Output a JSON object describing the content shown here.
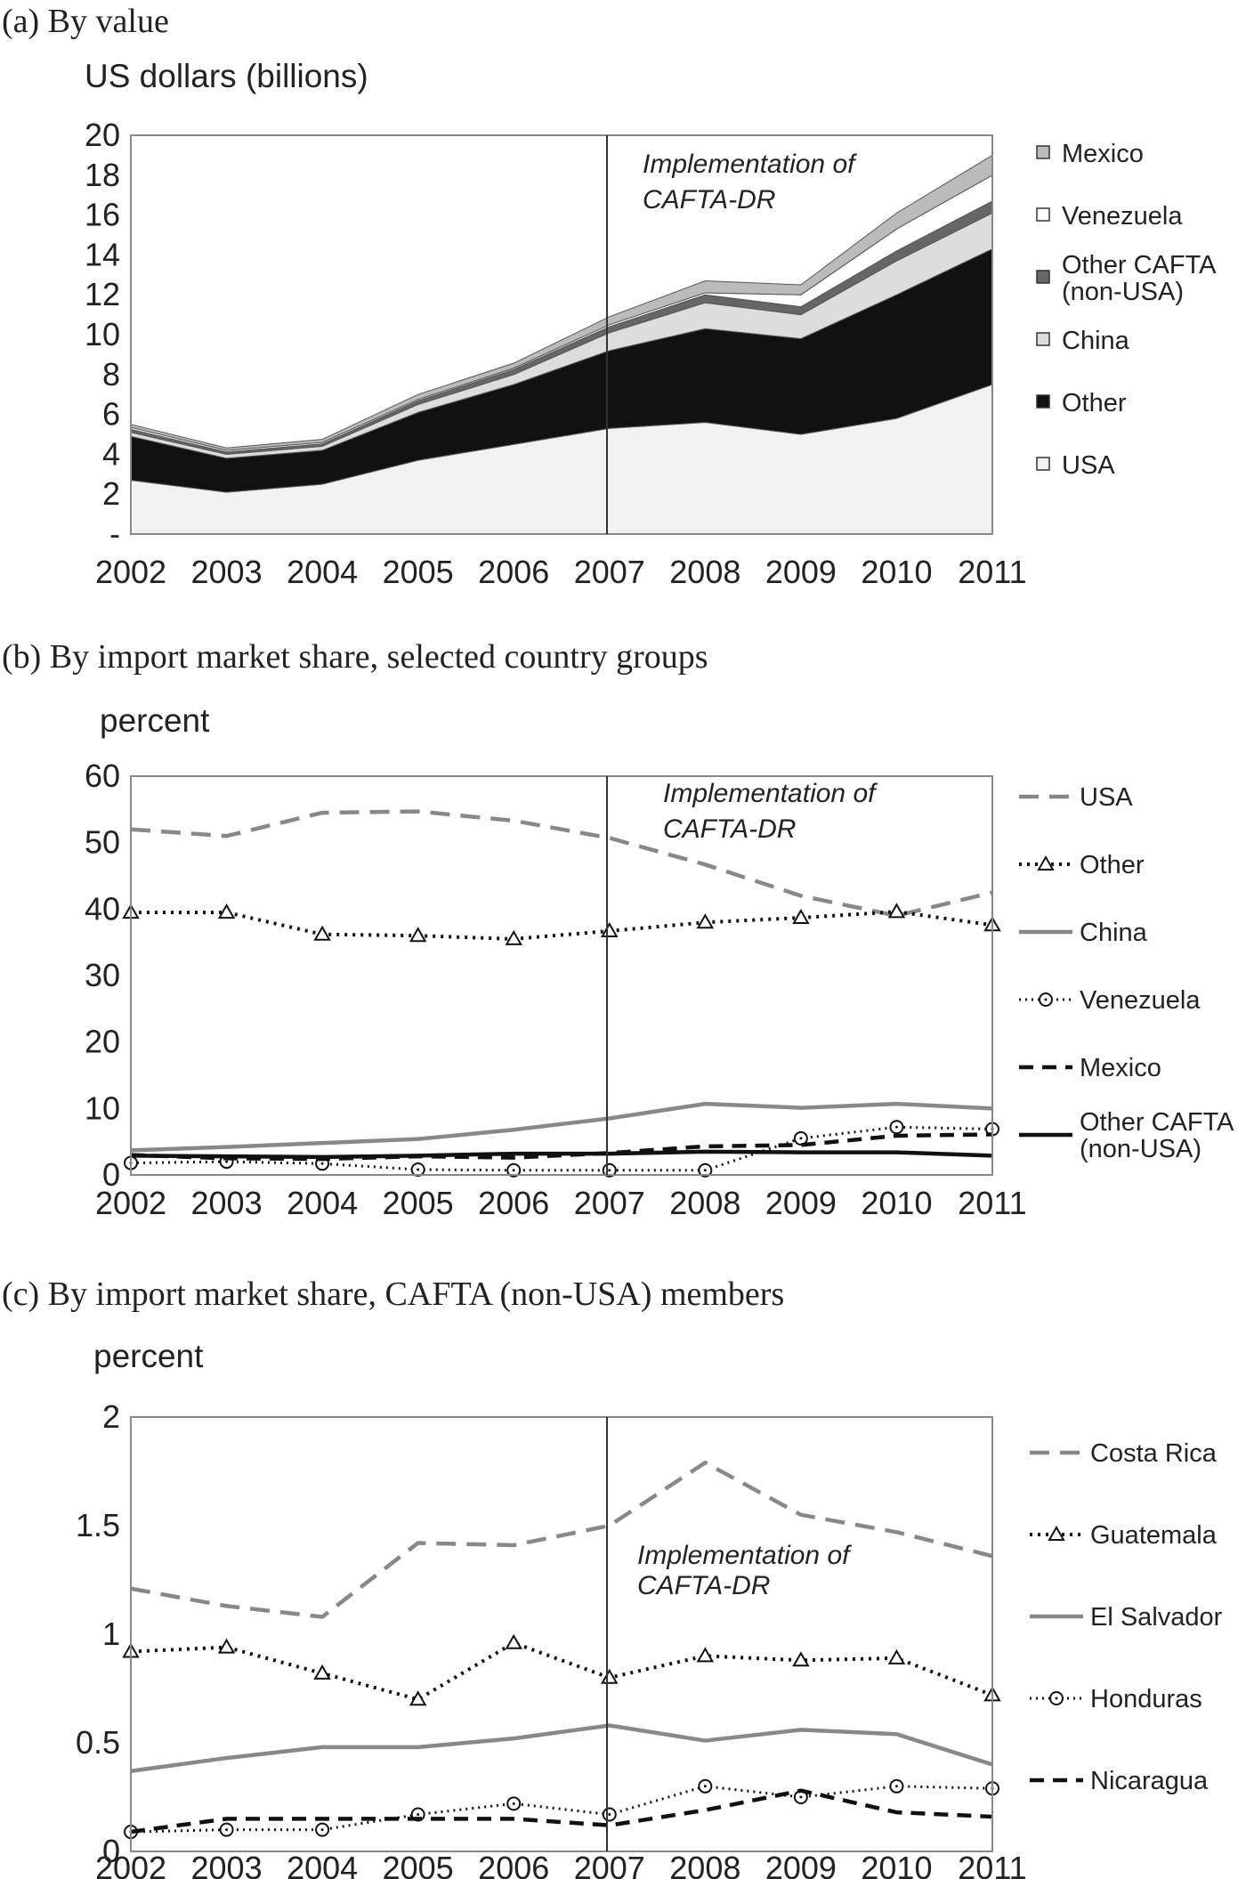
{
  "figure": {
    "panels": [
      {
        "title": "(a) By value",
        "unit": "US dollars (billions)",
        "annotation_line1": "Implementation of",
        "annotation_line2": "CAFTA-DR"
      },
      {
        "title": "(b) By import market share, selected country groups",
        "unit": "percent",
        "annotation_line1": "Implementation of",
        "annotation_line2": "CAFTA-DR"
      },
      {
        "title": "(c) By import market share, CAFTA (non-USA) members",
        "unit": "percent",
        "annotation_line1": "Implementation of",
        "annotation_line2": "CAFTA-DR"
      }
    ]
  },
  "chart_data": [
    {
      "type": "area",
      "stacked": true,
      "title": "(a) By value",
      "ylabel": "US dollars (billions)",
      "x": [
        "2002",
        "2003",
        "2004",
        "2005",
        "2006",
        "2007",
        "2008",
        "2009",
        "2010",
        "2011"
      ],
      "ylim": [
        0,
        20
      ],
      "yticks": [
        "-",
        "2",
        "4",
        "6",
        "8",
        "10",
        "12",
        "14",
        "16",
        "18",
        "20"
      ],
      "annotation": {
        "x": "2007",
        "text": [
          "Implementation of",
          "CAFTA-DR"
        ]
      },
      "series": [
        {
          "name": "USA",
          "color": "#f1f1f1",
          "values": [
            2.7,
            2.1,
            2.5,
            3.7,
            4.5,
            5.3,
            5.6,
            5.0,
            5.8,
            7.5
          ]
        },
        {
          "name": "Other",
          "color": "#111111",
          "values": [
            2.2,
            1.7,
            1.7,
            2.4,
            3.0,
            3.9,
            4.7,
            4.8,
            6.2,
            6.8
          ]
        },
        {
          "name": "China",
          "color": "#dddddd",
          "values": [
            0.2,
            0.2,
            0.2,
            0.4,
            0.5,
            0.9,
            1.3,
            1.2,
            1.7,
            1.8
          ]
        },
        {
          "name": "Other CAFTA (non-USA)",
          "color": "#666666",
          "values": [
            0.15,
            0.12,
            0.12,
            0.18,
            0.25,
            0.3,
            0.4,
            0.4,
            0.5,
            0.6
          ]
        },
        {
          "name": "Venezuela",
          "color": "#ffffff",
          "values": [
            0.1,
            0.08,
            0.08,
            0.07,
            0.07,
            0.1,
            0.1,
            0.6,
            1.1,
            1.3
          ]
        },
        {
          "name": "Mexico",
          "color": "#bbbbbb",
          "values": [
            0.15,
            0.12,
            0.15,
            0.25,
            0.25,
            0.4,
            0.6,
            0.5,
            0.8,
            1.0
          ]
        }
      ],
      "legend": [
        "Mexico",
        "Venezuela",
        "Other CAFTA\n(non-USA)",
        "China",
        "Other",
        "USA"
      ],
      "legend_placement": "right"
    },
    {
      "type": "line",
      "title": "(b) By import market share, selected country groups",
      "ylabel": "percent",
      "x": [
        "2002",
        "2003",
        "2004",
        "2005",
        "2006",
        "2007",
        "2008",
        "2009",
        "2010",
        "2011"
      ],
      "ylim": [
        0,
        60
      ],
      "yticks": [
        "0",
        "10",
        "20",
        "30",
        "40",
        "50",
        "60"
      ],
      "annotation": {
        "x": "2007",
        "text": [
          "Implementation of",
          "CAFTA-DR"
        ]
      },
      "series": [
        {
          "name": "USA",
          "style": "dashed-gray",
          "values": [
            52,
            51,
            54.5,
            54.7,
            53.3,
            50.7,
            46.7,
            42,
            39,
            42.5
          ]
        },
        {
          "name": "Other",
          "style": "dotted-triangle",
          "values": [
            39.5,
            39.5,
            36.2,
            36,
            35.5,
            36.7,
            38,
            38.7,
            39.6,
            37.6
          ]
        },
        {
          "name": "China",
          "style": "solid-gray",
          "values": [
            3.7,
            4.2,
            4.8,
            5.4,
            6.8,
            8.5,
            10.7,
            10.1,
            10.7,
            10
          ]
        },
        {
          "name": "Venezuela",
          "style": "dotted-circle",
          "values": [
            1.8,
            2,
            1.7,
            0.8,
            0.7,
            0.7,
            0.7,
            5.5,
            7.2,
            6.9
          ]
        },
        {
          "name": "Mexico",
          "style": "dashed-black",
          "values": [
            3,
            2.5,
            2.4,
            2.8,
            2.6,
            3.3,
            4.3,
            4.5,
            5.9,
            6.1
          ]
        },
        {
          "name": "Other CAFTA (non-USA)",
          "style": "solid-black",
          "values": [
            2.9,
            2.8,
            2.7,
            2.9,
            3.2,
            3.2,
            3.5,
            3.4,
            3.4,
            2.9
          ]
        }
      ],
      "legend": [
        "USA",
        "Other",
        "China",
        "Venezuela",
        "Mexico",
        "Other CAFTA\n(non-USA)"
      ],
      "legend_placement": "right"
    },
    {
      "type": "line",
      "title": "(c) By import market share, CAFTA (non-USA) members",
      "ylabel": "percent",
      "x": [
        "2002",
        "2003",
        "2004",
        "2005",
        "2006",
        "2007",
        "2008",
        "2009",
        "2010",
        "2011"
      ],
      "ylim": [
        0,
        2
      ],
      "yticks": [
        "0",
        "0.5",
        "1",
        "1.5",
        "2"
      ],
      "annotation": {
        "x": "2007",
        "text": [
          "Implementation of",
          "CAFTA-DR"
        ]
      },
      "series": [
        {
          "name": "Costa Rica",
          "style": "dashed-gray",
          "values": [
            1.21,
            1.13,
            1.08,
            1.42,
            1.41,
            1.5,
            1.79,
            1.55,
            1.47,
            1.36
          ]
        },
        {
          "name": "Guatemala",
          "style": "dotted-triangle",
          "values": [
            0.92,
            0.94,
            0.82,
            0.7,
            0.96,
            0.8,
            0.9,
            0.88,
            0.89,
            0.72
          ]
        },
        {
          "name": "El Salvador",
          "style": "solid-gray",
          "values": [
            0.37,
            0.43,
            0.48,
            0.48,
            0.52,
            0.58,
            0.51,
            0.56,
            0.54,
            0.4
          ]
        },
        {
          "name": "Honduras",
          "style": "dotted-circle",
          "values": [
            0.09,
            0.1,
            0.1,
            0.17,
            0.22,
            0.17,
            0.3,
            0.25,
            0.3,
            0.29
          ]
        },
        {
          "name": "Nicaragua",
          "style": "dashed-black",
          "values": [
            0.09,
            0.15,
            0.15,
            0.15,
            0.15,
            0.12,
            0.19,
            0.28,
            0.18,
            0.16
          ]
        }
      ],
      "legend": [
        "Costa Rica",
        "Guatemala",
        "El Salvador",
        "Honduras",
        "Nicaragua"
      ],
      "legend_placement": "right"
    }
  ]
}
